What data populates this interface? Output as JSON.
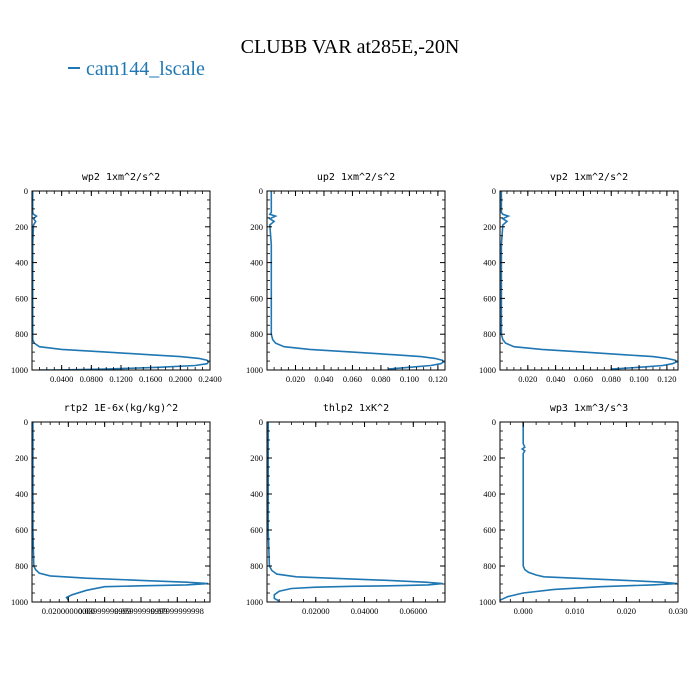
{
  "figure": {
    "title": "CLUBB VAR at285E,-20N",
    "legend": [
      {
        "label": "cam144_lscale",
        "color": "#1f77b4"
      }
    ]
  },
  "chart_data": [
    {
      "type": "line",
      "title": "wp2  1xm^2/s^2",
      "xlim": [
        0.0,
        0.24
      ],
      "ylim": [
        1000,
        0
      ],
      "y_inverted": true,
      "xticks": [
        0.04,
        0.08,
        0.12,
        0.16,
        0.2,
        0.24
      ],
      "xtick_labels": [
        "0.0400",
        "0.0800",
        "0.1200",
        "0.1600",
        "0.2000",
        "0.2400"
      ],
      "yticks": [
        0,
        200,
        400,
        600,
        800,
        1000
      ],
      "ytick_labels": [
        "0",
        "200",
        "400",
        "600",
        "800",
        "1000"
      ],
      "series": [
        {
          "color": "#1f77b4",
          "x": [
            0.001,
            0.001,
            0.002,
            0.006,
            0.002,
            0.005,
            0.002,
            0.001,
            0.001,
            0.001,
            0.001,
            0.003,
            0.01,
            0.04,
            0.1,
            0.16,
            0.2,
            0.225,
            0.236,
            0.238,
            0.236,
            0.22,
            0.17,
            0.1,
            0.03,
            0.01
          ],
          "y": [
            0,
            120,
            130,
            140,
            155,
            170,
            190,
            300,
            600,
            800,
            830,
            850,
            870,
            885,
            900,
            915,
            925,
            935,
            945,
            955,
            965,
            975,
            985,
            995,
            1000,
            1000
          ]
        }
      ]
    },
    {
      "type": "line",
      "title": "up2  1xm^2/s^2",
      "xlim": [
        0.0,
        0.125
      ],
      "ylim": [
        1000,
        0
      ],
      "y_inverted": true,
      "xticks": [
        0.02,
        0.04,
        0.06,
        0.08,
        0.1,
        0.12
      ],
      "xtick_labels": [
        "0.020",
        "0.040",
        "0.060",
        "0.080",
        "0.100",
        "0.120"
      ],
      "yticks": [
        0,
        200,
        400,
        600,
        800,
        1000
      ],
      "ytick_labels": [
        "0",
        "200",
        "400",
        "600",
        "800",
        "1000"
      ],
      "series": [
        {
          "color": "#1f77b4",
          "x": [
            0.003,
            0.003,
            0.002,
            0.006,
            0.002,
            0.005,
            0.002,
            0.003,
            0.003,
            0.003,
            0.004,
            0.006,
            0.012,
            0.03,
            0.06,
            0.09,
            0.108,
            0.118,
            0.123,
            0.124,
            0.122,
            0.115,
            0.1,
            0.085
          ],
          "y": [
            0,
            120,
            130,
            140,
            155,
            170,
            190,
            300,
            600,
            800,
            830,
            850,
            870,
            885,
            900,
            915,
            925,
            935,
            945,
            955,
            965,
            975,
            985,
            995
          ]
        }
      ]
    },
    {
      "type": "line",
      "title": "vp2  1xm^2/s^2",
      "xlim": [
        0.0,
        0.128
      ],
      "ylim": [
        1000,
        0
      ],
      "y_inverted": true,
      "xticks": [
        0.02,
        0.04,
        0.06,
        0.08,
        0.1,
        0.12
      ],
      "xtick_labels": [
        "0.020",
        "0.040",
        "0.060",
        "0.080",
        "0.100",
        "0.120"
      ],
      "yticks": [
        0,
        200,
        400,
        600,
        800,
        1000
      ],
      "ytick_labels": [
        "0",
        "200",
        "400",
        "600",
        "800",
        "1000"
      ],
      "series": [
        {
          "color": "#1f77b4",
          "x": [
            0.001,
            0.001,
            0.002,
            0.006,
            0.002,
            0.005,
            0.002,
            0.001,
            0.001,
            0.001,
            0.002,
            0.004,
            0.01,
            0.03,
            0.06,
            0.09,
            0.11,
            0.12,
            0.126,
            0.127,
            0.124,
            0.117,
            0.1,
            0.08
          ],
          "y": [
            0,
            120,
            130,
            140,
            155,
            170,
            190,
            300,
            600,
            800,
            830,
            850,
            870,
            885,
            900,
            915,
            925,
            935,
            945,
            955,
            965,
            975,
            985,
            995
          ]
        }
      ]
    },
    {
      "type": "line",
      "title": "rtp2  1E-6x(kg/kg)^2",
      "xlim": [
        0.0,
        0.098
      ],
      "ylim": [
        1000,
        0
      ],
      "y_inverted": true,
      "xticks": [
        0.02,
        0.04,
        0.06,
        0.08
      ],
      "xtick_labels": [
        "0.02000000000",
        "0.03999999999",
        "0.05999999999",
        "0.07999999998"
      ],
      "yticks": [
        0,
        200,
        400,
        600,
        800,
        1000
      ],
      "ytick_labels": [
        "0",
        "200",
        "400",
        "600",
        "800",
        "1000"
      ],
      "series": [
        {
          "color": "#1f77b4",
          "x": [
            0.0005,
            0.0005,
            0.001,
            0.002,
            0.004,
            0.01,
            0.03,
            0.06,
            0.085,
            0.097,
            0.085,
            0.06,
            0.04,
            0.03,
            0.022,
            0.019,
            0.02
          ],
          "y": [
            0,
            600,
            800,
            820,
            840,
            855,
            868,
            880,
            890,
            898,
            905,
            910,
            915,
            935,
            960,
            975,
            990
          ]
        }
      ]
    },
    {
      "type": "line",
      "title": "thlp2  1xK^2",
      "xlim": [
        0.0,
        0.073
      ],
      "ylim": [
        1000,
        0
      ],
      "y_inverted": true,
      "xticks": [
        0.02,
        0.04,
        0.06
      ],
      "xtick_labels": [
        "0.02000",
        "0.04000",
        "0.06000"
      ],
      "yticks": [
        0,
        200,
        400,
        600,
        800,
        1000
      ],
      "ytick_labels": [
        "0",
        "200",
        "400",
        "600",
        "800",
        "1000"
      ],
      "series": [
        {
          "color": "#1f77b4",
          "x": [
            0.0005,
            0.0005,
            0.001,
            0.002,
            0.004,
            0.012,
            0.03,
            0.05,
            0.065,
            0.072,
            0.066,
            0.05,
            0.035,
            0.02,
            0.01,
            0.005,
            0.003,
            0.003,
            0.005
          ],
          "y": [
            0,
            600,
            800,
            825,
            845,
            860,
            870,
            880,
            890,
            898,
            905,
            910,
            913,
            918,
            925,
            940,
            960,
            980,
            995
          ]
        }
      ]
    },
    {
      "type": "line",
      "title": "wp3  1xm^3/s^3",
      "xlim": [
        -0.0045,
        0.03
      ],
      "ylim": [
        1000,
        0
      ],
      "y_inverted": true,
      "xticks": [
        0.0,
        0.01,
        0.02,
        0.03
      ],
      "xtick_labels": [
        "0.000",
        "0.010",
        "0.020",
        "0.030"
      ],
      "yticks": [
        0,
        200,
        400,
        600,
        800,
        1000
      ],
      "ytick_labels": [
        "0",
        "200",
        "400",
        "600",
        "800",
        "1000"
      ],
      "series": [
        {
          "color": "#1f77b4",
          "x": [
            0.0,
            0.0,
            0.0003,
            -0.0002,
            0.0003,
            0.0,
            0.0,
            0.0,
            0.0003,
            0.001,
            0.0025,
            0.004,
            0.01,
            0.02,
            0.027,
            0.0298,
            0.025,
            0.015,
            0.006,
            0.0,
            -0.003,
            -0.0045
          ],
          "y": [
            0,
            120,
            140,
            150,
            160,
            175,
            400,
            800,
            820,
            835,
            850,
            860,
            868,
            880,
            890,
            898,
            905,
            915,
            930,
            950,
            970,
            990
          ]
        }
      ]
    }
  ]
}
